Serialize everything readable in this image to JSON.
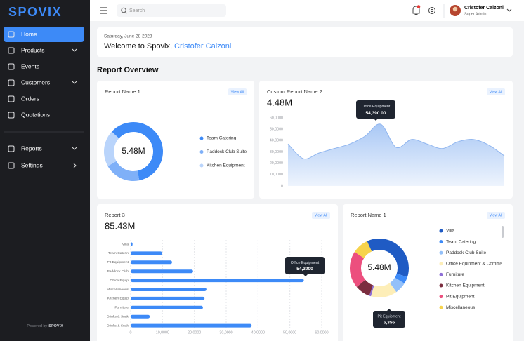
{
  "sidebar": {
    "logo": "SPOVIX",
    "menu": [
      {
        "label": "Home"
      },
      {
        "label": "Products"
      },
      {
        "label": "Events"
      },
      {
        "label": "Customers"
      },
      {
        "label": "Orders"
      },
      {
        "label": "Quotations"
      },
      {
        "label": "Reports"
      },
      {
        "label": "Settings"
      }
    ],
    "footer_prefix": "Powered by",
    "footer_brand": "SPOVIX"
  },
  "topbar": {
    "search_placeholder": "Search",
    "user_name": "Cristofer Calzoni",
    "user_role": "Super Admin"
  },
  "welcome": {
    "date": "Saturday, June 28 2023",
    "greeting": "Welcome to Spovix,",
    "name": "Cristofer Calzoni"
  },
  "section_title": "Report Overview",
  "cards": [
    {
      "title": "Report Name 1",
      "button": "View All",
      "chart": {
        "type": "donut",
        "center_label": "5.48M",
        "categories": [
          "Team Catering",
          "Paddock Club Suite",
          "Kitchen Equipment"
        ],
        "values": [
          60,
          20,
          20
        ],
        "colors": [
          "#3d8af7",
          "#7fb0f8",
          "#b9d4fb"
        ]
      }
    },
    {
      "title": "Custom Report Name 2",
      "button": "View All",
      "total": "4.48M",
      "chart": {
        "type": "area",
        "values": [
          37000,
          24000,
          29000,
          33000,
          37000,
          44000,
          54390,
          34000,
          41000,
          37000,
          33000,
          39000,
          41000,
          36000,
          26500
        ],
        "color": "#8fb5ef",
        "ylim": [
          0,
          60000
        ],
        "yticks": [
          0,
          {
            "value": 10000,
            "label": "10,0000"
          },
          {
            "value": 20000,
            "label": "20,0000"
          },
          {
            "value": 30000,
            "label": "30,0000"
          },
          {
            "value": 40000,
            "label": "40,0000"
          },
          {
            "value": 50000,
            "label": "50,0000"
          },
          {
            "value": 60000,
            "label": "60,0000"
          }
        ],
        "tooltip": {
          "title": "Office Equipment",
          "text": "54,390.00"
        }
      }
    },
    {
      "title": "Report 3",
      "button": "View All",
      "total": "85.43M",
      "chart": {
        "type": "hbar",
        "categories": [
          "Villa",
          "Team Caterin",
          "Pit Equipment",
          "Paddock Club",
          "Office Equip",
          "Miscellaneous",
          "Kitchen Equip",
          "Furniture",
          "Drinks & Snak",
          "Drinks & Snak"
        ],
        "values": [
          600,
          9900,
          13000,
          19600,
          54390,
          23800,
          23200,
          22700,
          6000,
          38000
        ],
        "color": "#3d8af7",
        "grid": true,
        "xlim": [
          0,
          60000
        ],
        "xticks": [
          0,
          {
            "value": 10000,
            "label": "10,0000"
          },
          {
            "value": 20000,
            "label": "20,0000"
          },
          {
            "value": 30000,
            "label": "30,0000"
          },
          {
            "value": 40000,
            "label": "40,0000"
          },
          {
            "value": 50000,
            "label": "50,0000"
          },
          {
            "value": 60000,
            "label": "60,0000"
          }
        ],
        "tooltip": {
          "title": "Office Equipment",
          "text": "54,3900"
        }
      }
    },
    {
      "title": "Report Name 1",
      "button": "View All",
      "chart": {
        "type": "donut",
        "center_label": "5.48M",
        "categories": [
          "Villa",
          "Team Catering",
          "Paddock Club Suite",
          "Office Equipment & Comms",
          "Furniture",
          "Kitchen Equipment",
          "Pit Equipment",
          "Miscellaneous"
        ],
        "values": [
          11500,
          1200,
          2000,
          4500,
          300,
          2600,
          6356,
          2800
        ],
        "colors": [
          "#1f5bc4",
          "#3d8af7",
          "#93c0f9",
          "#fdeeb8",
          "#8e6fd6",
          "#7b2d3f",
          "#ec4f7e",
          "#f6d34c"
        ],
        "tooltip": {
          "title": "Pit Equipment",
          "text": "6,356"
        }
      }
    }
  ]
}
